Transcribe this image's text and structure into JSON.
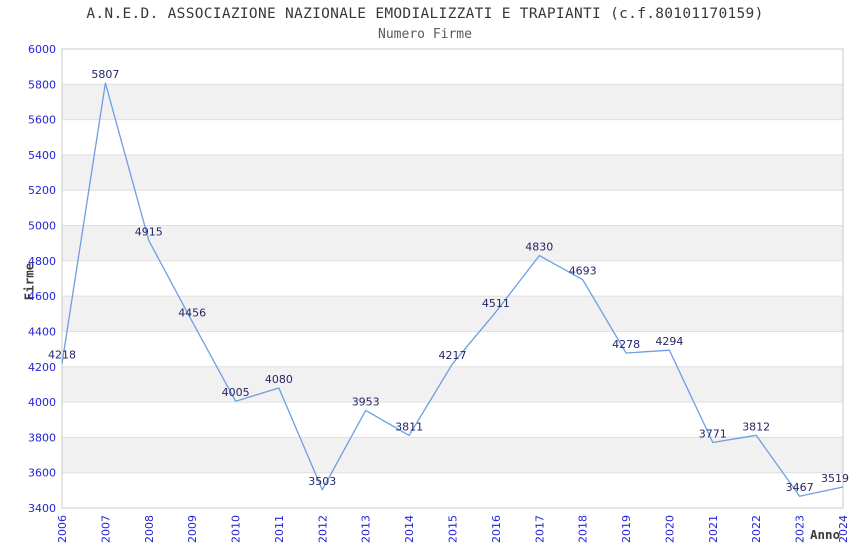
{
  "chart_data": {
    "type": "line",
    "title": "A.N.E.D. ASSOCIAZIONE NAZIONALE EMODIALIZZATI E TRAPIANTI (c.f.80101170159)",
    "subtitle": "Numero Firme",
    "xlabel": "Anno",
    "ylabel": "Firme",
    "categories": [
      "2006",
      "2007",
      "2008",
      "2009",
      "2010",
      "2011",
      "2012",
      "2013",
      "2014",
      "2015",
      "2016",
      "2017",
      "2018",
      "2019",
      "2020",
      "2021",
      "2022",
      "2023",
      "2024"
    ],
    "values": [
      4218,
      5807,
      4915,
      4456,
      4005,
      4080,
      3503,
      3953,
      3811,
      4217,
      4511,
      4830,
      4693,
      4278,
      4294,
      3771,
      3812,
      3467,
      3519
    ],
    "ylim": [
      3400,
      6000
    ],
    "ytick_step": 200,
    "grid": true,
    "bands_alternating": true,
    "legend": "none",
    "data_labels_shown": true,
    "colors": {
      "line": "#6d9ee3",
      "data_label": "#252569",
      "tick_label": "#2323d9",
      "band": "#f1f1f1",
      "gridline": "#e0e0e0",
      "plot_border": "#c9c9c9",
      "title": "#383838",
      "subtitle": "#5a5a5a",
      "axis_title": "#3c3c3c",
      "background": "#ffffff"
    }
  }
}
